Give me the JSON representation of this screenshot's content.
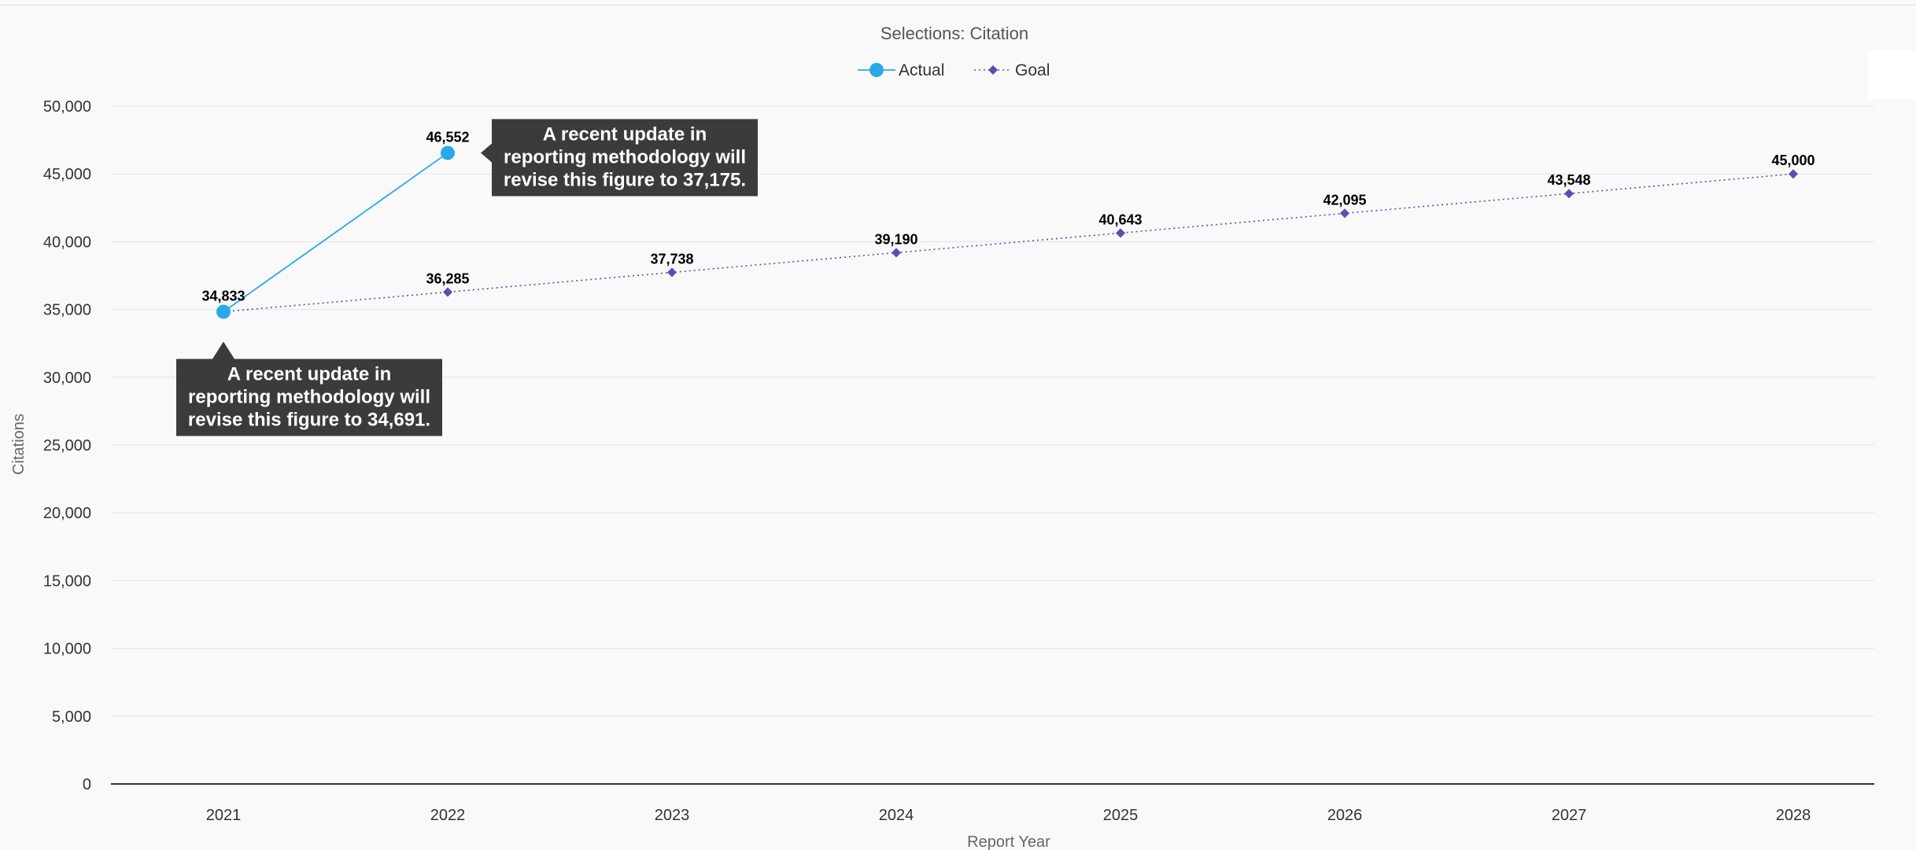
{
  "chart_data": {
    "type": "line",
    "title": "Selections: Citation",
    "xlabel": "Report Year",
    "ylabel": "Citations",
    "categories": [
      "2021",
      "2022",
      "2023",
      "2024",
      "2025",
      "2026",
      "2027",
      "2028"
    ],
    "ylim": [
      0,
      50000
    ],
    "yticks": [
      0,
      5000,
      10000,
      15000,
      20000,
      25000,
      30000,
      35000,
      40000,
      45000,
      50000
    ],
    "ytick_labels": [
      "0",
      "5,000",
      "10,000",
      "15,000",
      "20,000",
      "25,000",
      "30,000",
      "35,000",
      "40,000",
      "45,000",
      "50,000"
    ],
    "grid": true,
    "legend_position": "top-center",
    "series": [
      {
        "name": "Actual",
        "color": "#2aa9e8",
        "line_style": "solid",
        "marker": "circle",
        "values": [
          34833,
          46552,
          null,
          null,
          null,
          null,
          null,
          null
        ],
        "labels": [
          "34,833",
          "46,552",
          "",
          "",
          "",
          "",
          "",
          ""
        ]
      },
      {
        "name": "Goal",
        "color": "#5a4db5",
        "line_style": "dotted",
        "marker": "diamond",
        "values": [
          34833,
          36285,
          37738,
          39190,
          40643,
          42095,
          43548,
          45000
        ],
        "labels": [
          "",
          "36,285",
          "37,738",
          "39,190",
          "40,643",
          "42,095",
          "43,548",
          "45,000"
        ]
      }
    ],
    "annotations": [
      {
        "category": "2022",
        "anchor": "right",
        "lines": [
          "A recent update in",
          "reporting methodology will",
          "revise this figure to 37,175."
        ]
      },
      {
        "category": "2021",
        "anchor": "below",
        "lines": [
          "A recent update in",
          "reporting methodology will",
          "revise this figure to 34,691."
        ]
      }
    ]
  }
}
